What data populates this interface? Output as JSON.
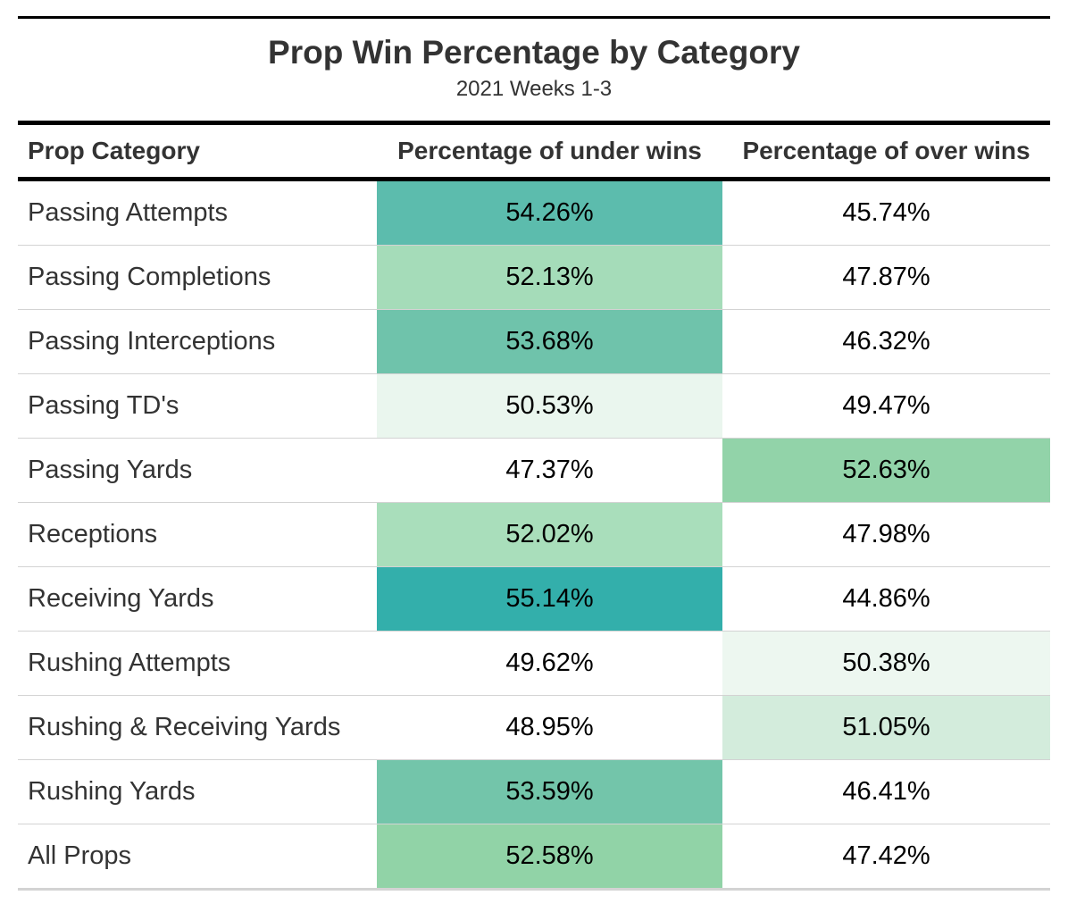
{
  "chart_data": {
    "type": "table",
    "title": "Prop Win Percentage by Category",
    "subtitle": "2021 Weeks 1-3",
    "columns": [
      "Prop Category",
      "Percentage of under wins",
      "Percentage of over wins"
    ],
    "rows": [
      {
        "category": "Passing Attempts",
        "under": "54.26%",
        "over": "45.74%",
        "under_color": "#5cbcad",
        "over_color": "#ffffff"
      },
      {
        "category": "Passing Completions",
        "under": "52.13%",
        "over": "47.87%",
        "under_color": "#a5dcb9",
        "over_color": "#ffffff"
      },
      {
        "category": "Passing Interceptions",
        "under": "53.68%",
        "over": "46.32%",
        "under_color": "#6fc3ab",
        "over_color": "#ffffff"
      },
      {
        "category": "Passing TD's",
        "under": "50.53%",
        "over": "49.47%",
        "under_color": "#eaf6ee",
        "over_color": "#ffffff"
      },
      {
        "category": "Passing Yards",
        "under": "47.37%",
        "over": "52.63%",
        "under_color": "#ffffff",
        "over_color": "#92d3a9"
      },
      {
        "category": "Receptions",
        "under": "52.02%",
        "over": "47.98%",
        "under_color": "#a9debb",
        "over_color": "#ffffff"
      },
      {
        "category": "Receiving Yards",
        "under": "55.14%",
        "over": "44.86%",
        "under_color": "#33afab",
        "over_color": "#ffffff"
      },
      {
        "category": "Rushing Attempts",
        "under": "49.62%",
        "over": "50.38%",
        "under_color": "#ffffff",
        "over_color": "#edf7f0"
      },
      {
        "category": "Rushing & Receiving Yards",
        "under": "48.95%",
        "over": "51.05%",
        "under_color": "#ffffff",
        "over_color": "#d3ecdc"
      },
      {
        "category": "Rushing Yards",
        "under": "53.59%",
        "over": "46.41%",
        "under_color": "#73c5aa",
        "over_color": "#ffffff"
      },
      {
        "category": "All Props",
        "under": "52.58%",
        "over": "47.42%",
        "under_color": "#91d3a7",
        "over_color": "#ffffff"
      }
    ]
  }
}
